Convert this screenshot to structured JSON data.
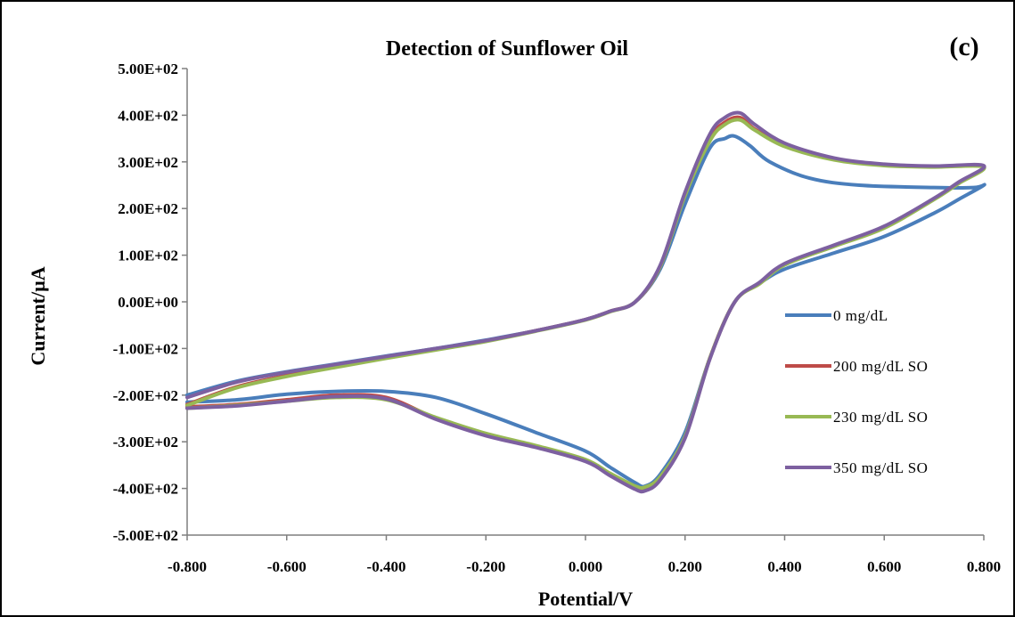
{
  "chart_data": {
    "type": "line",
    "title": "Detection of Sunflower Oil",
    "panel_label": "(c)",
    "xlabel": "Potential/V",
    "ylabel": "Current/µA",
    "xlim": [
      -0.8,
      0.8
    ],
    "ylim": [
      -500,
      500
    ],
    "x_ticks": [
      -0.8,
      -0.6,
      -0.4,
      -0.2,
      0.0,
      0.2,
      0.4,
      0.6,
      0.8
    ],
    "x_tick_labels": [
      "-0.800",
      "-0.600",
      "-0.400",
      "-0.200",
      "0.000",
      "0.200",
      "0.400",
      "0.600",
      "0.800"
    ],
    "y_ticks": [
      500,
      400,
      300,
      200,
      100,
      0,
      -100,
      -200,
      -300,
      -400,
      -500
    ],
    "y_tick_labels": [
      "5.00E+02",
      "4.00E+02",
      "3.00E+02",
      "2.00E+02",
      "1.00E+02",
      "0.00E+00",
      "-1.00E+02",
      "-2.00E+02",
      "-3.00E+02",
      "-4.00E+02",
      "-5.00E+02"
    ],
    "grid": false,
    "legend_position": "right",
    "series": [
      {
        "name": "0 mg/dL",
        "color": "#4a7ebb",
        "x": [
          -0.8,
          -0.7,
          -0.6,
          -0.5,
          -0.4,
          -0.3,
          -0.2,
          -0.1,
          0.0,
          0.05,
          0.1,
          0.15,
          0.2,
          0.25,
          0.28,
          0.3,
          0.33,
          0.37,
          0.45,
          0.55,
          0.7,
          0.78,
          0.8,
          0.75,
          0.7,
          0.6,
          0.5,
          0.4,
          0.35,
          0.3,
          0.25,
          0.2,
          0.15,
          0.12,
          0.1,
          0.05,
          0.0,
          -0.1,
          -0.2,
          -0.3,
          -0.4,
          -0.5,
          -0.6,
          -0.7,
          -0.8
        ],
        "y": [
          -200,
          -170,
          -150,
          -133,
          -116,
          -100,
          -82,
          -62,
          -38,
          -20,
          0,
          70,
          210,
          330,
          350,
          355,
          335,
          300,
          265,
          250,
          245,
          245,
          250,
          220,
          190,
          140,
          105,
          70,
          40,
          0,
          -120,
          -280,
          -370,
          -395,
          -388,
          -355,
          -320,
          -280,
          -240,
          -205,
          -192,
          -192,
          -198,
          -210,
          -215
        ]
      },
      {
        "name": "200 mg/dL SO",
        "color": "#be4b48",
        "x": [
          -0.8,
          -0.7,
          -0.6,
          -0.5,
          -0.4,
          -0.3,
          -0.2,
          -0.1,
          0.0,
          0.05,
          0.1,
          0.15,
          0.2,
          0.25,
          0.28,
          0.31,
          0.34,
          0.4,
          0.5,
          0.6,
          0.7,
          0.8,
          0.75,
          0.7,
          0.6,
          0.5,
          0.4,
          0.35,
          0.3,
          0.25,
          0.2,
          0.15,
          0.12,
          0.1,
          0.05,
          0.0,
          -0.1,
          -0.2,
          -0.3,
          -0.4,
          -0.5,
          -0.6,
          -0.7,
          -0.8
        ],
        "y": [
          -220,
          -182,
          -158,
          -138,
          -120,
          -102,
          -84,
          -62,
          -38,
          -20,
          0,
          75,
          230,
          350,
          385,
          395,
          370,
          335,
          305,
          293,
          290,
          290,
          255,
          220,
          160,
          120,
          80,
          40,
          0,
          -120,
          -290,
          -378,
          -400,
          -398,
          -370,
          -340,
          -310,
          -285,
          -250,
          -205,
          -200,
          -210,
          -220,
          -225
        ]
      },
      {
        "name": "230 mg/dL SO",
        "color": "#98b954",
        "x": [
          -0.8,
          -0.7,
          -0.6,
          -0.5,
          -0.4,
          -0.3,
          -0.2,
          -0.1,
          0.0,
          0.05,
          0.1,
          0.15,
          0.2,
          0.25,
          0.28,
          0.31,
          0.34,
          0.4,
          0.5,
          0.6,
          0.7,
          0.8,
          0.75,
          0.7,
          0.6,
          0.5,
          0.4,
          0.35,
          0.3,
          0.25,
          0.2,
          0.15,
          0.12,
          0.1,
          0.05,
          0.0,
          -0.1,
          -0.2,
          -0.3,
          -0.4,
          -0.5,
          -0.6,
          -0.7,
          -0.8
        ],
        "y": [
          -222,
          -184,
          -160,
          -140,
          -121,
          -103,
          -85,
          -63,
          -39,
          -21,
          0,
          75,
          228,
          345,
          380,
          390,
          368,
          333,
          304,
          292,
          289,
          289,
          254,
          219,
          158,
          119,
          79,
          39,
          0,
          -120,
          -288,
          -375,
          -397,
          -395,
          -368,
          -338,
          -308,
          -282,
          -248,
          -210,
          -205,
          -213,
          -222,
          -228
        ]
      },
      {
        "name": "350 mg/dL SO",
        "color": "#7d60a0",
        "x": [
          -0.8,
          -0.7,
          -0.6,
          -0.5,
          -0.4,
          -0.3,
          -0.2,
          -0.1,
          0.0,
          0.05,
          0.1,
          0.15,
          0.2,
          0.25,
          0.28,
          0.31,
          0.34,
          0.4,
          0.5,
          0.6,
          0.7,
          0.8,
          0.75,
          0.7,
          0.6,
          0.5,
          0.4,
          0.35,
          0.3,
          0.25,
          0.2,
          0.15,
          0.12,
          0.1,
          0.05,
          0.0,
          -0.1,
          -0.2,
          -0.3,
          -0.4,
          -0.5,
          -0.6,
          -0.7,
          -0.8
        ],
        "y": [
          -205,
          -172,
          -151,
          -134,
          -117,
          -100,
          -83,
          -62,
          -38,
          -20,
          0,
          78,
          235,
          360,
          395,
          405,
          380,
          340,
          308,
          295,
          291,
          292,
          257,
          222,
          162,
          122,
          82,
          42,
          0,
          -122,
          -292,
          -382,
          -405,
          -402,
          -373,
          -342,
          -312,
          -287,
          -252,
          -208,
          -203,
          -213,
          -223,
          -228
        ]
      }
    ]
  }
}
